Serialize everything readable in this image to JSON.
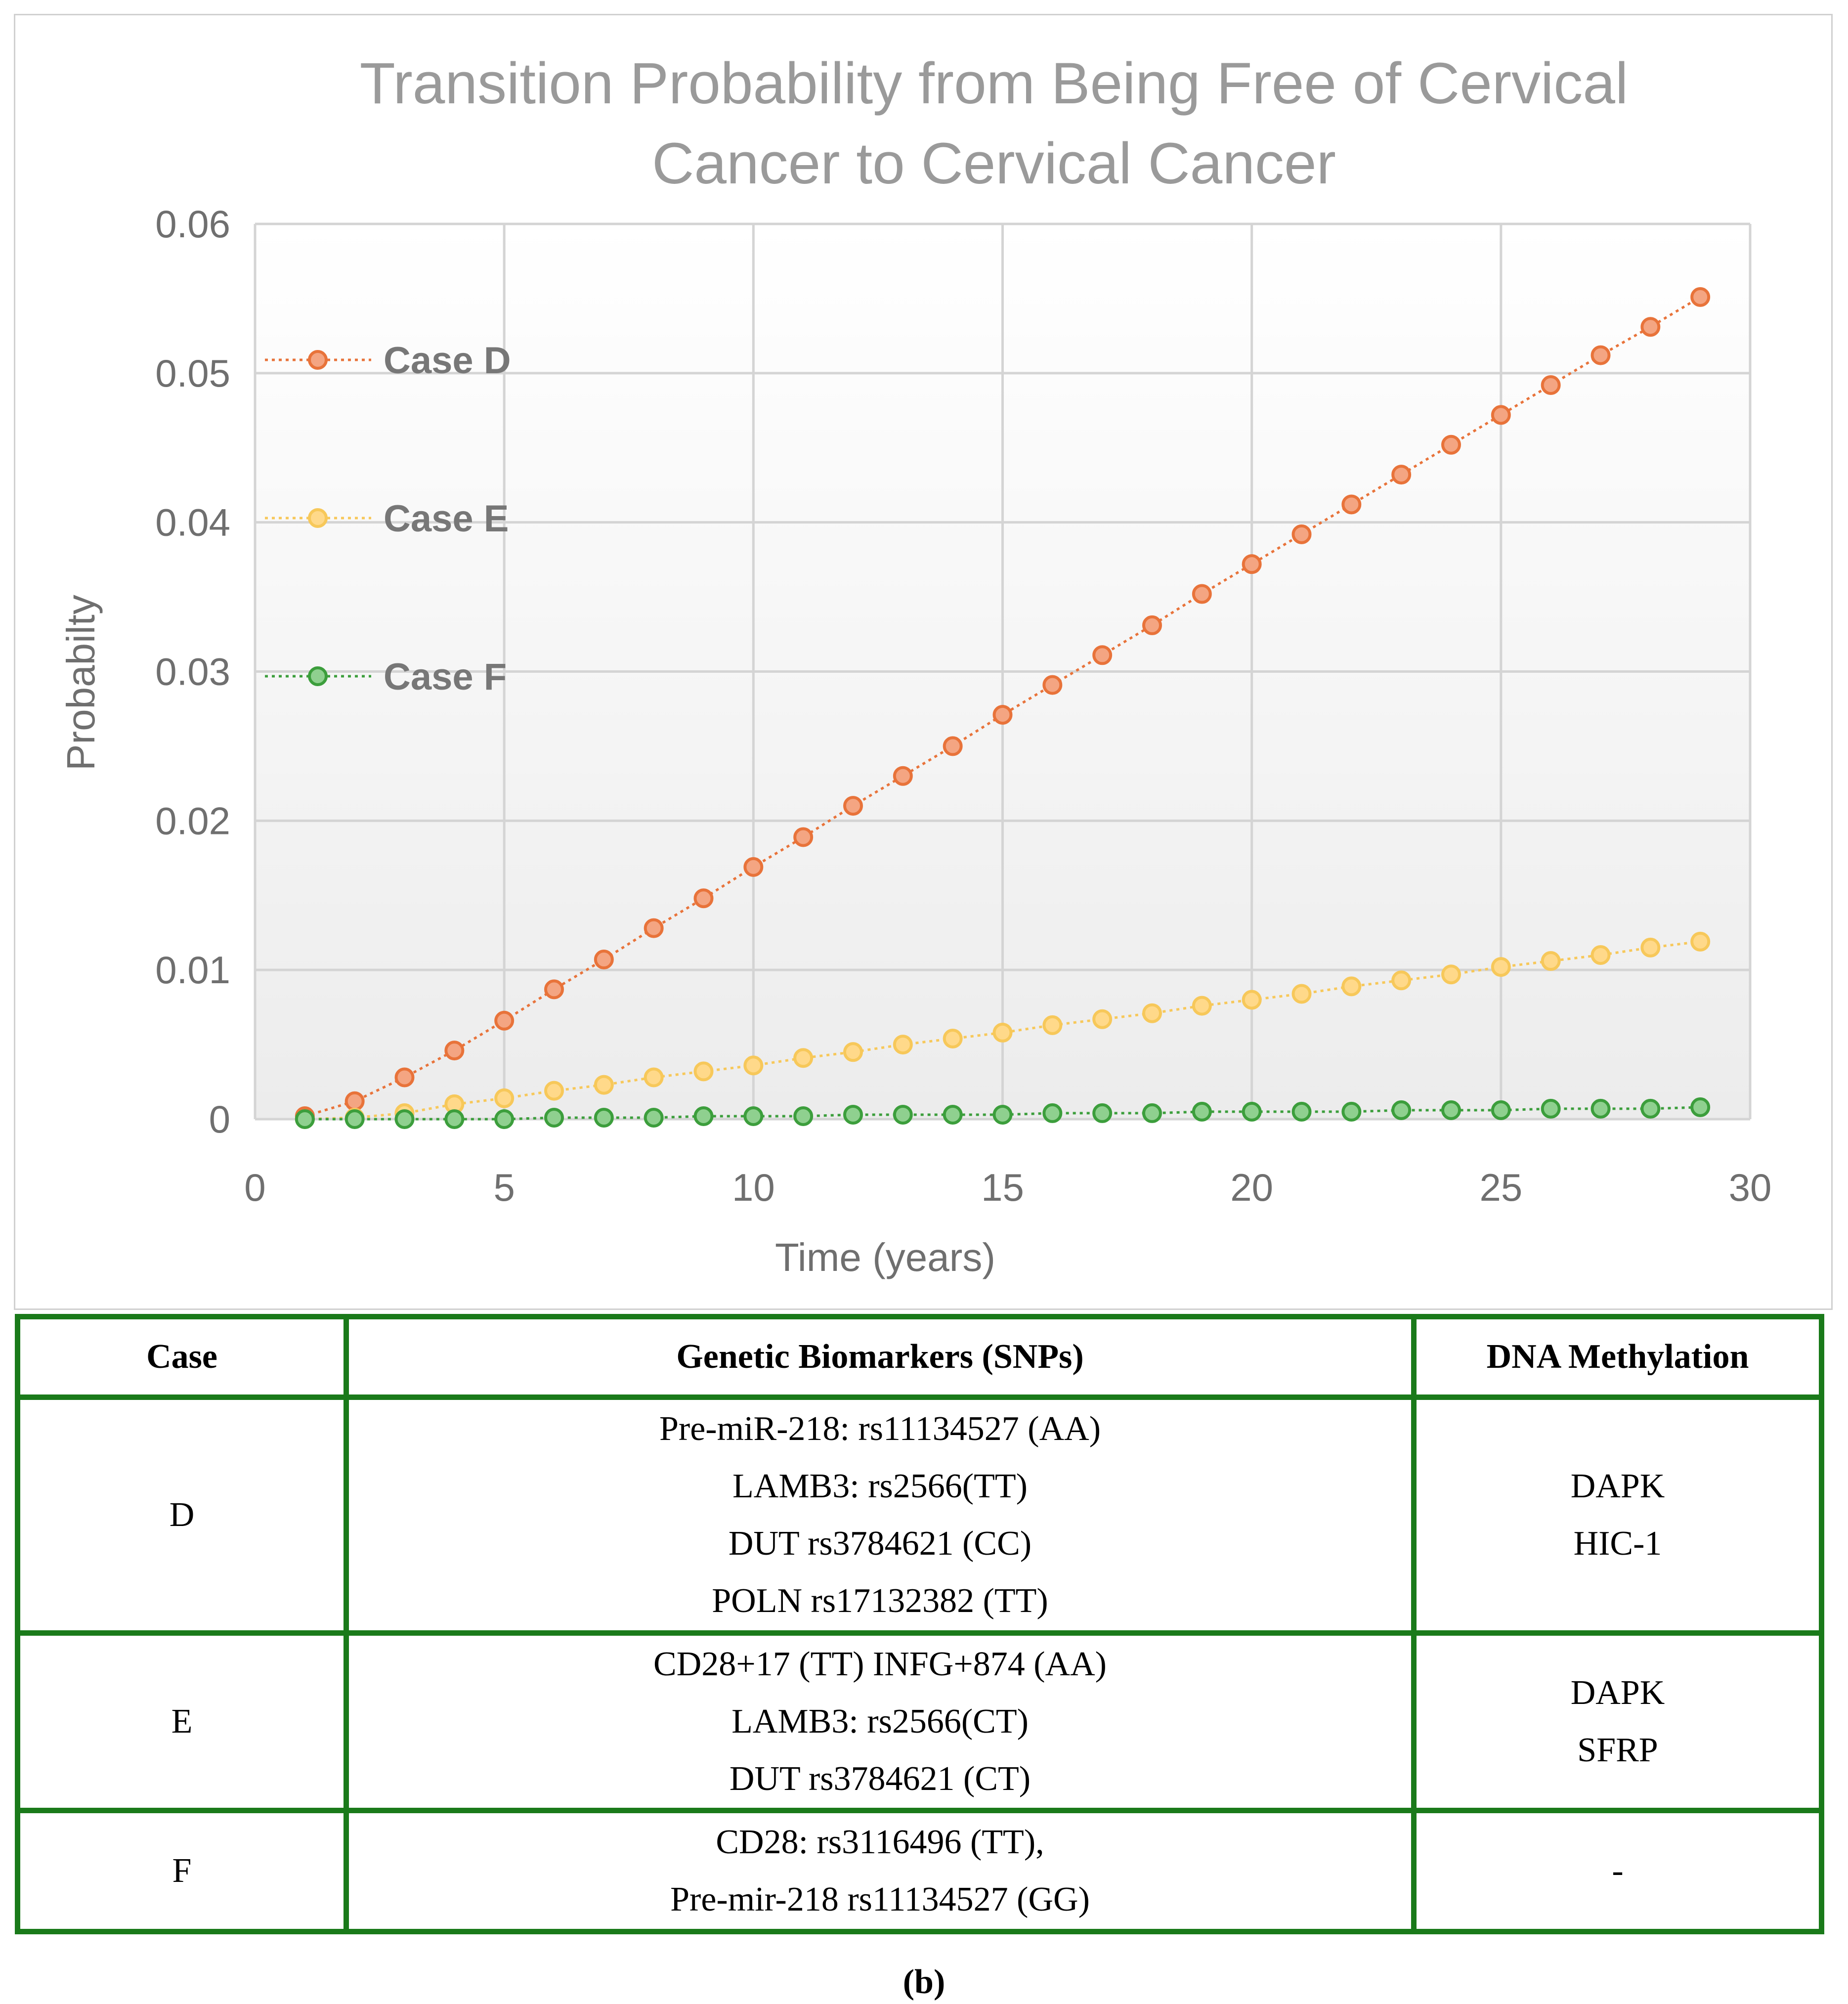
{
  "chart_data": {
    "type": "line",
    "title": "Transition Probability from Being Free of Cervical Cancer to Cervical Cancer",
    "title_lines": [
      "Transition Probability from Being Free of Cervical",
      "Cancer to Cervical Cancer"
    ],
    "xlabel": "Time (years)",
    "ylabel": "Probabilty",
    "xlim": [
      0,
      30
    ],
    "ylim": [
      0,
      0.06
    ],
    "x_ticks": [
      0,
      5,
      10,
      15,
      20,
      25,
      30
    ],
    "x_tick_labels": [
      "0",
      "5",
      "10",
      "15",
      "20",
      "25",
      "30"
    ],
    "y_ticks": [
      0,
      0.01,
      0.02,
      0.03,
      0.04,
      0.05,
      0.06
    ],
    "y_tick_labels": [
      "0",
      "0.01",
      "0.02",
      "0.03",
      "0.04",
      "0.05",
      "0.06"
    ],
    "grid": true,
    "legend_position": "left",
    "x": [
      1,
      2,
      3,
      4,
      5,
      6,
      7,
      8,
      9,
      10,
      11,
      12,
      13,
      14,
      15,
      16,
      17,
      18,
      19,
      20,
      21,
      22,
      23,
      24,
      25,
      26,
      27,
      28,
      29
    ],
    "series": [
      {
        "name": "Case D",
        "color": "#f4a582",
        "edge_color": "#e8733a",
        "values": [
          0.0002,
          0.0012,
          0.0028,
          0.0046,
          0.0066,
          0.0087,
          0.0107,
          0.0128,
          0.0148,
          0.0169,
          0.0189,
          0.021,
          0.023,
          0.025,
          0.0271,
          0.0291,
          0.0311,
          0.0331,
          0.0352,
          0.0372,
          0.0392,
          0.0412,
          0.0432,
          0.0452,
          0.0472,
          0.0492,
          0.0512,
          0.0531,
          0.0551
        ]
      },
      {
        "name": "Case E",
        "color": "#ffd98a",
        "edge_color": "#f7c85a",
        "values": [
          0.0,
          0.0001,
          0.0004,
          0.001,
          0.0014,
          0.0019,
          0.0023,
          0.0028,
          0.0032,
          0.0036,
          0.0041,
          0.0045,
          0.005,
          0.0054,
          0.0058,
          0.0063,
          0.0067,
          0.0071,
          0.0076,
          0.008,
          0.0084,
          0.0089,
          0.0093,
          0.0097,
          0.0102,
          0.0106,
          0.011,
          0.0115,
          0.0119
        ]
      },
      {
        "name": "Case F",
        "color": "#8fd08f",
        "edge_color": "#3c9e3c",
        "values": [
          0.0,
          0.0,
          0.0,
          0.0,
          0.0,
          0.0001,
          0.0001,
          0.0001,
          0.0002,
          0.0002,
          0.0002,
          0.0003,
          0.0003,
          0.0003,
          0.0003,
          0.0004,
          0.0004,
          0.0004,
          0.0005,
          0.0005,
          0.0005,
          0.0005,
          0.0006,
          0.0006,
          0.0006,
          0.0007,
          0.0007,
          0.0007,
          0.0008
        ]
      }
    ]
  },
  "table": {
    "headers": {
      "case": "Case",
      "snps": "Genetic Biomarkers (SNPs)",
      "methylation": "DNA Methylation"
    },
    "rows": [
      {
        "case": "D",
        "snps": [
          "Pre-miR-218: rs11134527 (AA)",
          "LAMB3: rs2566(TT)",
          "DUT rs3784621 (CC)",
          "POLN rs17132382 (TT)"
        ],
        "methylation": [
          "DAPK",
          "HIC-1"
        ]
      },
      {
        "case": "E",
        "snps": [
          "CD28+17 (TT) INFG+874 (AA)",
          "LAMB3: rs2566(CT)",
          "DUT rs3784621 (CT)"
        ],
        "methylation": [
          "DAPK",
          "SFRP"
        ]
      },
      {
        "case": "F",
        "snps": [
          "CD28: rs3116496 (TT),",
          "Pre-mir-218 rs11134527 (GG)"
        ],
        "methylation": [
          "-"
        ]
      }
    ]
  },
  "caption": "(b)"
}
